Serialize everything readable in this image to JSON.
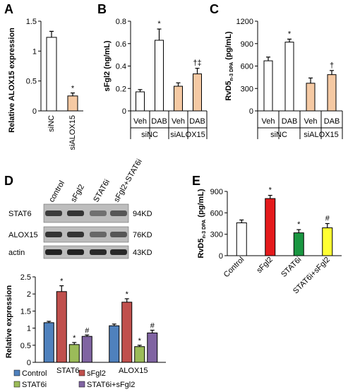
{
  "panels": {
    "A": {
      "letter": "A"
    },
    "B": {
      "letter": "B"
    },
    "C": {
      "letter": "C"
    },
    "D": {
      "letter": "D"
    },
    "E": {
      "letter": "E"
    }
  },
  "chart_data": [
    {
      "id": "A",
      "type": "bar",
      "ylabel": "Relative ALOX15 expression",
      "categories": [
        "siNC",
        "siALOX15"
      ],
      "values": [
        1.23,
        0.25
      ],
      "errors": [
        0.1,
        0.05
      ],
      "sig": [
        "",
        "*"
      ],
      "colors": [
        "#ffffff",
        "#f5c9a3"
      ],
      "ylim": [
        0,
        1.5
      ],
      "yticks": [
        "0",
        "0.5",
        "1",
        "1.5"
      ]
    },
    {
      "id": "B",
      "type": "bar",
      "ylabel": "sFgl2 (ng/mL)",
      "categories": [
        "Veh",
        "DAB",
        "Veh",
        "DAB"
      ],
      "groups": [
        "siNC",
        "siALOX15"
      ],
      "values": [
        0.17,
        0.63,
        0.22,
        0.33
      ],
      "errors": [
        0.02,
        0.1,
        0.03,
        0.05
      ],
      "sig": [
        "",
        "*",
        "",
        "†‡"
      ],
      "colors": [
        "#ffffff",
        "#ffffff",
        "#f5c9a3",
        "#f5c9a3"
      ],
      "ylim": [
        0,
        0.8
      ],
      "yticks": [
        "0",
        "0.2",
        "0.4",
        "0.6",
        "0.8"
      ]
    },
    {
      "id": "C",
      "type": "bar",
      "ylabel_main": "RvD5",
      "ylabel_sub": "n-3 DPA",
      "ylabel_unit": "(pg/mL)",
      "categories": [
        "Veh",
        "DAB",
        "Veh",
        "DAB"
      ],
      "groups": [
        "siNC",
        "siALOX15"
      ],
      "values": [
        670,
        920,
        370,
        485
      ],
      "errors": [
        50,
        40,
        70,
        55
      ],
      "sig": [
        "",
        "*",
        "",
        "†"
      ],
      "colors": [
        "#ffffff",
        "#ffffff",
        "#f5c9a3",
        "#f5c9a3"
      ],
      "ylim": [
        0,
        1200
      ],
      "yticks": [
        "0",
        "300",
        "600",
        "900",
        "1200"
      ]
    },
    {
      "id": "D",
      "type": "bar",
      "ylabel": "Relative expression",
      "categories": [
        "STAT6",
        "ALOX15"
      ],
      "series": [
        {
          "name": "Control",
          "values": [
            1.16,
            1.07
          ],
          "errors": [
            0.04,
            0.05
          ],
          "sig": [
            "",
            ""
          ]
        },
        {
          "name": "sFgl2",
          "values": [
            2.07,
            1.76
          ],
          "errors": [
            0.17,
            0.1
          ],
          "sig": [
            "*",
            "*"
          ]
        },
        {
          "name": "STAT6i",
          "values": [
            0.52,
            0.46
          ],
          "errors": [
            0.06,
            0.04
          ],
          "sig": [
            "*",
            "*"
          ]
        },
        {
          "name": "STAT6i+sFgl2",
          "values": [
            0.76,
            0.86
          ],
          "errors": [
            0.04,
            0.08
          ],
          "sig": [
            "#",
            "#"
          ]
        }
      ],
      "colors": [
        "#4f81bd",
        "#c0504d",
        "#9bbb59",
        "#8064a2"
      ],
      "ylim": [
        0,
        2.5
      ],
      "yticks": [
        "0",
        "0.5",
        "1",
        "1.5",
        "2",
        "2.5"
      ]
    },
    {
      "id": "E",
      "type": "bar",
      "ylabel_main": "RvD5",
      "ylabel_sub": "n-3 DPA",
      "ylabel_unit": "(pg/mL)",
      "categories": [
        "Control",
        "sFgl2",
        "STAT6i",
        "STAT6i+sFgl2"
      ],
      "values": [
        460,
        800,
        320,
        390
      ],
      "errors": [
        40,
        45,
        45,
        60
      ],
      "sig": [
        "",
        "*",
        "*",
        "#"
      ],
      "colors": [
        "#ffffff",
        "#e41a1c",
        "#1a9641",
        "#ffff33"
      ],
      "ylim": [
        0,
        900
      ],
      "yticks": [
        "0",
        "300",
        "600",
        "900"
      ]
    }
  ],
  "western": {
    "lanes": [
      "control",
      "sFgl2",
      "STAT6i",
      "sFgl2+STAT6i"
    ],
    "rows": [
      {
        "label": "STAT6",
        "kd": "94KD"
      },
      {
        "label": "ALOX15",
        "kd": "76KD"
      },
      {
        "label": "actin",
        "kd": "43KD"
      }
    ]
  }
}
